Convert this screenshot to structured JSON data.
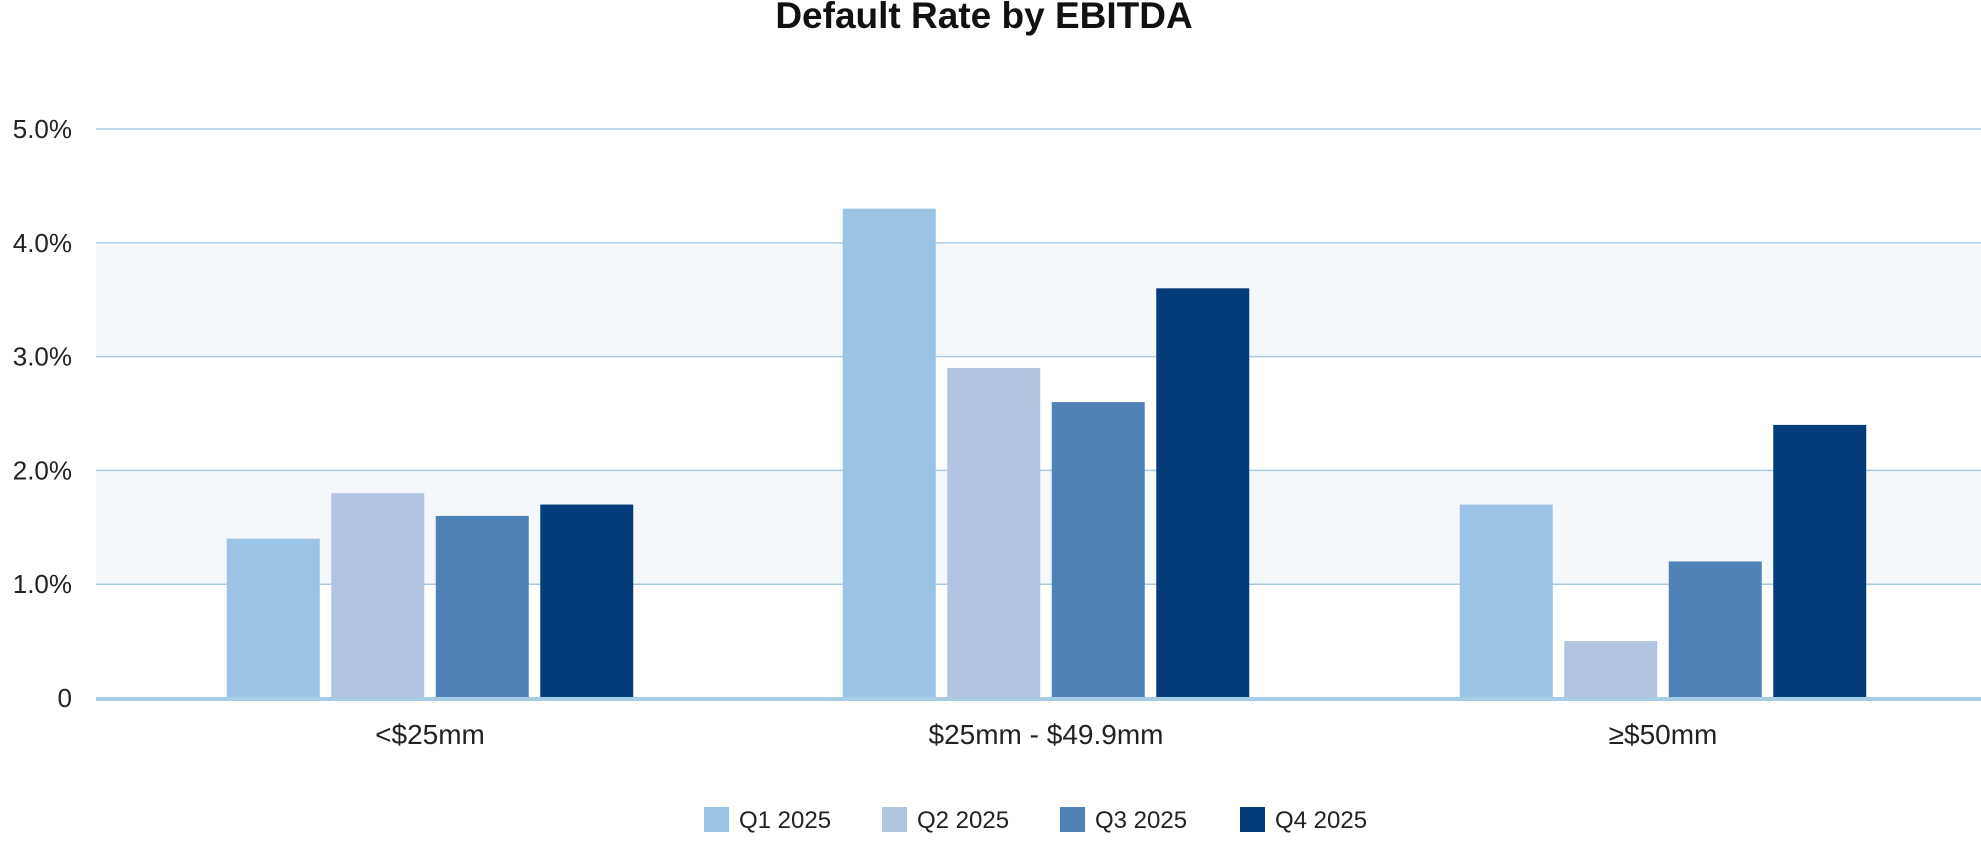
{
  "chart_data": {
    "type": "bar",
    "title": "Default Rate by EBITDA",
    "xlabel": "",
    "ylabel": "",
    "categories": [
      "<$25mm",
      "$25mm - $49.9mm",
      "≥$50mm"
    ],
    "series": [
      {
        "name": "Q1 2025",
        "color": "#9BC3E5",
        "values": [
          1.4,
          4.3,
          1.7
        ]
      },
      {
        "name": "Q2 2025",
        "color": "#B3C4E2",
        "values": [
          1.8,
          2.9,
          0.5
        ]
      },
      {
        "name": "Q3 2025",
        "color": "#4F82B7",
        "values": [
          1.6,
          2.6,
          1.2
        ]
      },
      {
        "name": "Q4 2025",
        "color": "#053D7A",
        "values": [
          1.7,
          3.6,
          2.4
        ]
      }
    ],
    "ylim": [
      0,
      5
    ],
    "yticks": [
      {
        "value": 0,
        "label": "0"
      },
      {
        "value": 1,
        "label": "1.0%"
      },
      {
        "value": 2,
        "label": "2.0%"
      },
      {
        "value": 3,
        "label": "3.0%"
      },
      {
        "value": 4,
        "label": "4.0%"
      },
      {
        "value": 5,
        "label": "5.0%"
      }
    ],
    "grid": true,
    "banded_background": true,
    "legend_position": "bottom-center",
    "colors": {
      "gridline": "#A9CCE6",
      "baseline": "#A9CCE6",
      "band": "#F4F8FB"
    }
  }
}
